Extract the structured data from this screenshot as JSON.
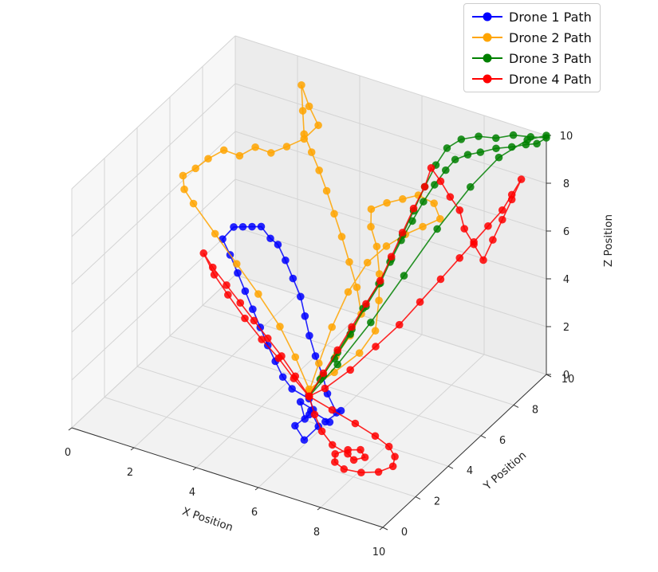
{
  "chart_data": {
    "type": "line3d",
    "title": "",
    "xlabel": "X Position",
    "ylabel": "Y Position",
    "zlabel": "Z Position",
    "xlim": [
      0,
      10
    ],
    "ylim": [
      0,
      10
    ],
    "zlim": [
      0,
      10
    ],
    "x_ticks": [
      "0",
      "2",
      "4",
      "6",
      "8",
      "10"
    ],
    "y_ticks": [
      "0",
      "2",
      "4",
      "6",
      "8",
      "10"
    ],
    "z_ticks": [
      "0",
      "2",
      "4",
      "6",
      "8",
      "10"
    ],
    "grid": true,
    "legend_position": "top-right",
    "series": [
      {
        "name": "Drone 1 Path",
        "color": "#0000ff",
        "points": [
          [
            5.0,
            5.0,
            0.2
          ],
          [
            5.2,
            4.6,
            0.6
          ],
          [
            5.5,
            4.3,
            0.3
          ],
          [
            5.3,
            3.9,
            0.8
          ],
          [
            5.6,
            3.6,
            0.4
          ],
          [
            5.9,
            3.3,
            0.9
          ],
          [
            5.6,
            3.0,
            0.5
          ],
          [
            6.0,
            2.8,
            0.2
          ],
          [
            6.3,
            3.1,
            0.7
          ],
          [
            5.9,
            3.4,
            1.0
          ],
          [
            6.4,
            3.6,
            0.6
          ],
          [
            6.1,
            3.9,
            0.3
          ],
          [
            6.5,
            4.1,
            0.8
          ],
          [
            6.2,
            4.4,
            0.4
          ],
          [
            5.8,
            4.6,
            0.9
          ],
          [
            5.5,
            4.9,
            1.3
          ],
          [
            5.1,
            5.2,
            1.8
          ],
          [
            4.8,
            5.4,
            2.4
          ],
          [
            4.5,
            5.7,
            2.9
          ],
          [
            4.2,
            6.0,
            3.4
          ],
          [
            3.8,
            6.3,
            3.8
          ],
          [
            3.4,
            6.6,
            4.2
          ],
          [
            3.0,
            6.9,
            4.5
          ],
          [
            2.6,
            7.2,
            4.4
          ],
          [
            2.2,
            7.4,
            4.6
          ],
          [
            1.8,
            7.6,
            4.3
          ],
          [
            1.4,
            7.8,
            4.0
          ],
          [
            1.0,
            8.0,
            3.7
          ],
          [
            0.8,
            7.7,
            3.3
          ],
          [
            1.2,
            7.4,
            3.0
          ],
          [
            1.6,
            7.1,
            2.6
          ],
          [
            2.0,
            6.8,
            2.2
          ],
          [
            2.4,
            6.5,
            1.8
          ],
          [
            2.8,
            6.2,
            1.4
          ],
          [
            3.2,
            5.9,
            1.0
          ],
          [
            3.6,
            5.6,
            0.7
          ],
          [
            4.0,
            5.3,
            0.4
          ],
          [
            4.4,
            5.1,
            0.2
          ],
          [
            5.0,
            5.0,
            0.1
          ]
        ]
      },
      {
        "name": "Drone 2 Path",
        "color": "#ffa500",
        "points": [
          [
            5.0,
            5.0,
            0.3
          ],
          [
            5.3,
            5.2,
            1.0
          ],
          [
            5.6,
            5.5,
            1.8
          ],
          [
            5.9,
            5.8,
            2.6
          ],
          [
            6.1,
            6.1,
            3.4
          ],
          [
            5.8,
            6.4,
            4.2
          ],
          [
            5.4,
            6.7,
            4.9
          ],
          [
            5.0,
            7.0,
            5.6
          ],
          [
            4.6,
            7.3,
            6.2
          ],
          [
            4.2,
            7.6,
            6.8
          ],
          [
            3.8,
            7.9,
            7.3
          ],
          [
            3.4,
            8.2,
            7.7
          ],
          [
            3.0,
            8.5,
            8.1
          ],
          [
            2.8,
            8.8,
            8.8
          ],
          [
            2.6,
            9.1,
            9.6
          ],
          [
            2.9,
            9.0,
            8.9
          ],
          [
            3.3,
            8.8,
            8.4
          ],
          [
            3.0,
            8.5,
            7.9
          ],
          [
            2.6,
            8.2,
            7.6
          ],
          [
            2.2,
            8.0,
            7.3
          ],
          [
            1.8,
            7.8,
            7.5
          ],
          [
            1.4,
            7.6,
            7.1
          ],
          [
            1.0,
            7.4,
            7.3
          ],
          [
            0.6,
            7.2,
            6.9
          ],
          [
            0.3,
            7.0,
            6.5
          ],
          [
            0.0,
            6.8,
            6.2
          ],
          [
            0.2,
            6.5,
            5.9
          ],
          [
            0.6,
            6.3,
            5.6
          ],
          [
            1.4,
            6.1,
            4.8
          ],
          [
            2.2,
            5.9,
            4.0
          ],
          [
            3.0,
            5.7,
            3.2
          ],
          [
            3.8,
            5.5,
            2.3
          ],
          [
            4.4,
            5.3,
            1.4
          ],
          [
            5.0,
            5.0,
            0.5
          ],
          [
            5.6,
            5.4,
            1.2
          ],
          [
            6.2,
            5.8,
            2.0
          ],
          [
            6.5,
            6.2,
            2.8
          ],
          [
            6.3,
            6.8,
            3.6
          ],
          [
            6.0,
            7.4,
            4.2
          ],
          [
            5.6,
            8.0,
            4.8
          ],
          [
            5.2,
            8.4,
            5.2
          ],
          [
            5.0,
            8.8,
            5.6
          ],
          [
            5.4,
            9.0,
            5.9
          ],
          [
            5.8,
            9.2,
            6.1
          ],
          [
            6.2,
            9.4,
            6.3
          ],
          [
            6.6,
            9.6,
            6.0
          ],
          [
            6.9,
            9.4,
            5.6
          ],
          [
            6.5,
            9.1,
            5.3
          ],
          [
            6.1,
            8.8,
            5.0
          ],
          [
            5.7,
            8.4,
            4.6
          ],
          [
            5.3,
            8.0,
            4.0
          ],
          [
            5.1,
            7.2,
            3.2
          ],
          [
            5.0,
            6.4,
            2.2
          ],
          [
            5.0,
            5.6,
            1.2
          ],
          [
            5.0,
            5.0,
            0.4
          ]
        ]
      },
      {
        "name": "Drone 3 Path",
        "color": "#008000",
        "points": [
          [
            5.0,
            5.0,
            0.2
          ],
          [
            5.3,
            5.3,
            1.0
          ],
          [
            5.6,
            5.6,
            1.9
          ],
          [
            5.9,
            5.9,
            2.8
          ],
          [
            6.2,
            6.2,
            3.7
          ],
          [
            6.5,
            6.5,
            4.6
          ],
          [
            6.7,
            6.8,
            5.5
          ],
          [
            6.9,
            7.1,
            6.4
          ],
          [
            7.1,
            7.4,
            7.3
          ],
          [
            7.3,
            7.7,
            8.2
          ],
          [
            7.5,
            8.0,
            9.0
          ],
          [
            7.7,
            8.3,
            9.6
          ],
          [
            8.0,
            8.6,
            9.9
          ],
          [
            8.4,
            8.9,
            10.0
          ],
          [
            8.8,
            9.2,
            9.9
          ],
          [
            9.2,
            9.5,
            10.0
          ],
          [
            9.6,
            9.8,
            9.9
          ],
          [
            10.0,
            10.0,
            9.9
          ],
          [
            9.8,
            9.8,
            9.7
          ],
          [
            9.5,
            9.7,
            9.6
          ],
          [
            9.1,
            9.6,
            9.4
          ],
          [
            8.7,
            9.4,
            9.3
          ],
          [
            8.3,
            9.2,
            9.1
          ],
          [
            8.0,
            9.0,
            9.0
          ],
          [
            7.7,
            8.8,
            8.8
          ],
          [
            7.5,
            8.6,
            8.4
          ],
          [
            7.3,
            8.3,
            7.9
          ],
          [
            7.1,
            8.0,
            7.3
          ],
          [
            6.9,
            7.7,
            6.6
          ],
          [
            6.7,
            7.4,
            5.9
          ],
          [
            6.5,
            7.1,
            5.1
          ],
          [
            6.3,
            6.8,
            4.3
          ],
          [
            6.0,
            6.4,
            3.4
          ],
          [
            5.8,
            6.0,
            2.5
          ],
          [
            5.5,
            5.6,
            1.6
          ],
          [
            5.2,
            5.3,
            0.8
          ],
          [
            5.0,
            5.0,
            0.2
          ],
          [
            5.6,
            5.6,
            1.4
          ],
          [
            6.3,
            6.3,
            3.0
          ],
          [
            7.0,
            7.0,
            4.8
          ],
          [
            7.7,
            7.7,
            6.6
          ],
          [
            8.4,
            8.4,
            8.2
          ],
          [
            9.0,
            9.0,
            9.3
          ],
          [
            9.6,
            9.6,
            9.9
          ],
          [
            10.0,
            10.0,
            10.0
          ]
        ]
      },
      {
        "name": "Drone 4 Path",
        "color": "#ff0000",
        "points": [
          [
            5.0,
            5.0,
            0.2
          ],
          [
            5.3,
            5.3,
            1.1
          ],
          [
            5.6,
            5.6,
            2.0
          ],
          [
            5.9,
            5.9,
            2.9
          ],
          [
            6.2,
            6.2,
            3.8
          ],
          [
            6.5,
            6.5,
            4.7
          ],
          [
            6.7,
            6.8,
            5.6
          ],
          [
            6.9,
            7.1,
            6.5
          ],
          [
            7.1,
            7.4,
            7.4
          ],
          [
            7.3,
            7.7,
            8.2
          ],
          [
            7.4,
            7.9,
            8.9
          ],
          [
            7.6,
            8.1,
            8.3
          ],
          [
            7.8,
            8.3,
            7.6
          ],
          [
            8.0,
            8.5,
            7.0
          ],
          [
            8.1,
            8.6,
            6.2
          ],
          [
            8.3,
            8.8,
            5.5
          ],
          [
            8.5,
            9.0,
            4.8
          ],
          [
            8.7,
            9.2,
            5.6
          ],
          [
            8.9,
            9.4,
            6.4
          ],
          [
            9.1,
            9.6,
            7.2
          ],
          [
            9.3,
            9.8,
            8.0
          ],
          [
            9.1,
            9.6,
            7.4
          ],
          [
            8.9,
            9.4,
            6.8
          ],
          [
            8.6,
            9.1,
            6.2
          ],
          [
            8.3,
            8.8,
            5.6
          ],
          [
            8.0,
            8.5,
            5.0
          ],
          [
            7.6,
            8.1,
            4.2
          ],
          [
            7.2,
            7.6,
            3.4
          ],
          [
            6.8,
            7.1,
            2.6
          ],
          [
            6.3,
            6.6,
            1.8
          ],
          [
            5.8,
            6.0,
            1.0
          ],
          [
            5.3,
            5.4,
            0.4
          ],
          [
            5.0,
            5.0,
            0.2
          ],
          [
            4.4,
            5.3,
            0.6
          ],
          [
            3.8,
            5.6,
            1.0
          ],
          [
            3.2,
            5.9,
            1.3
          ],
          [
            2.6,
            6.2,
            1.6
          ],
          [
            2.0,
            6.5,
            1.9
          ],
          [
            1.4,
            6.8,
            2.2
          ],
          [
            0.8,
            7.1,
            2.5
          ],
          [
            0.4,
            7.3,
            2.8
          ],
          [
            0.9,
            7.0,
            2.3
          ],
          [
            1.5,
            6.7,
            1.9
          ],
          [
            2.2,
            6.4,
            1.4
          ],
          [
            2.9,
            6.1,
            1.0
          ],
          [
            3.6,
            5.8,
            0.7
          ],
          [
            4.3,
            5.4,
            0.4
          ],
          [
            5.0,
            5.0,
            0.2
          ],
          [
            5.9,
            4.7,
            0.2
          ],
          [
            6.8,
            4.4,
            0.2
          ],
          [
            7.6,
            4.1,
            0.2
          ],
          [
            8.2,
            3.8,
            0.2
          ],
          [
            8.6,
            3.4,
            0.2
          ],
          [
            8.8,
            2.9,
            0.2
          ],
          [
            8.6,
            2.4,
            0.2
          ],
          [
            8.2,
            2.1,
            0.2
          ],
          [
            7.7,
            2.0,
            0.2
          ],
          [
            7.3,
            2.2,
            0.2
          ],
          [
            7.1,
            2.6,
            0.2
          ],
          [
            7.3,
            3.0,
            0.2
          ],
          [
            7.6,
            3.2,
            0.2
          ],
          [
            7.9,
            2.9,
            0.2
          ],
          [
            7.7,
            2.6,
            0.2
          ],
          [
            7.4,
            2.8,
            0.2
          ],
          [
            6.8,
            3.0,
            0.2
          ],
          [
            6.2,
            3.5,
            0.2
          ],
          [
            5.6,
            4.2,
            0.2
          ],
          [
            5.0,
            5.0,
            0.2
          ]
        ]
      }
    ]
  }
}
